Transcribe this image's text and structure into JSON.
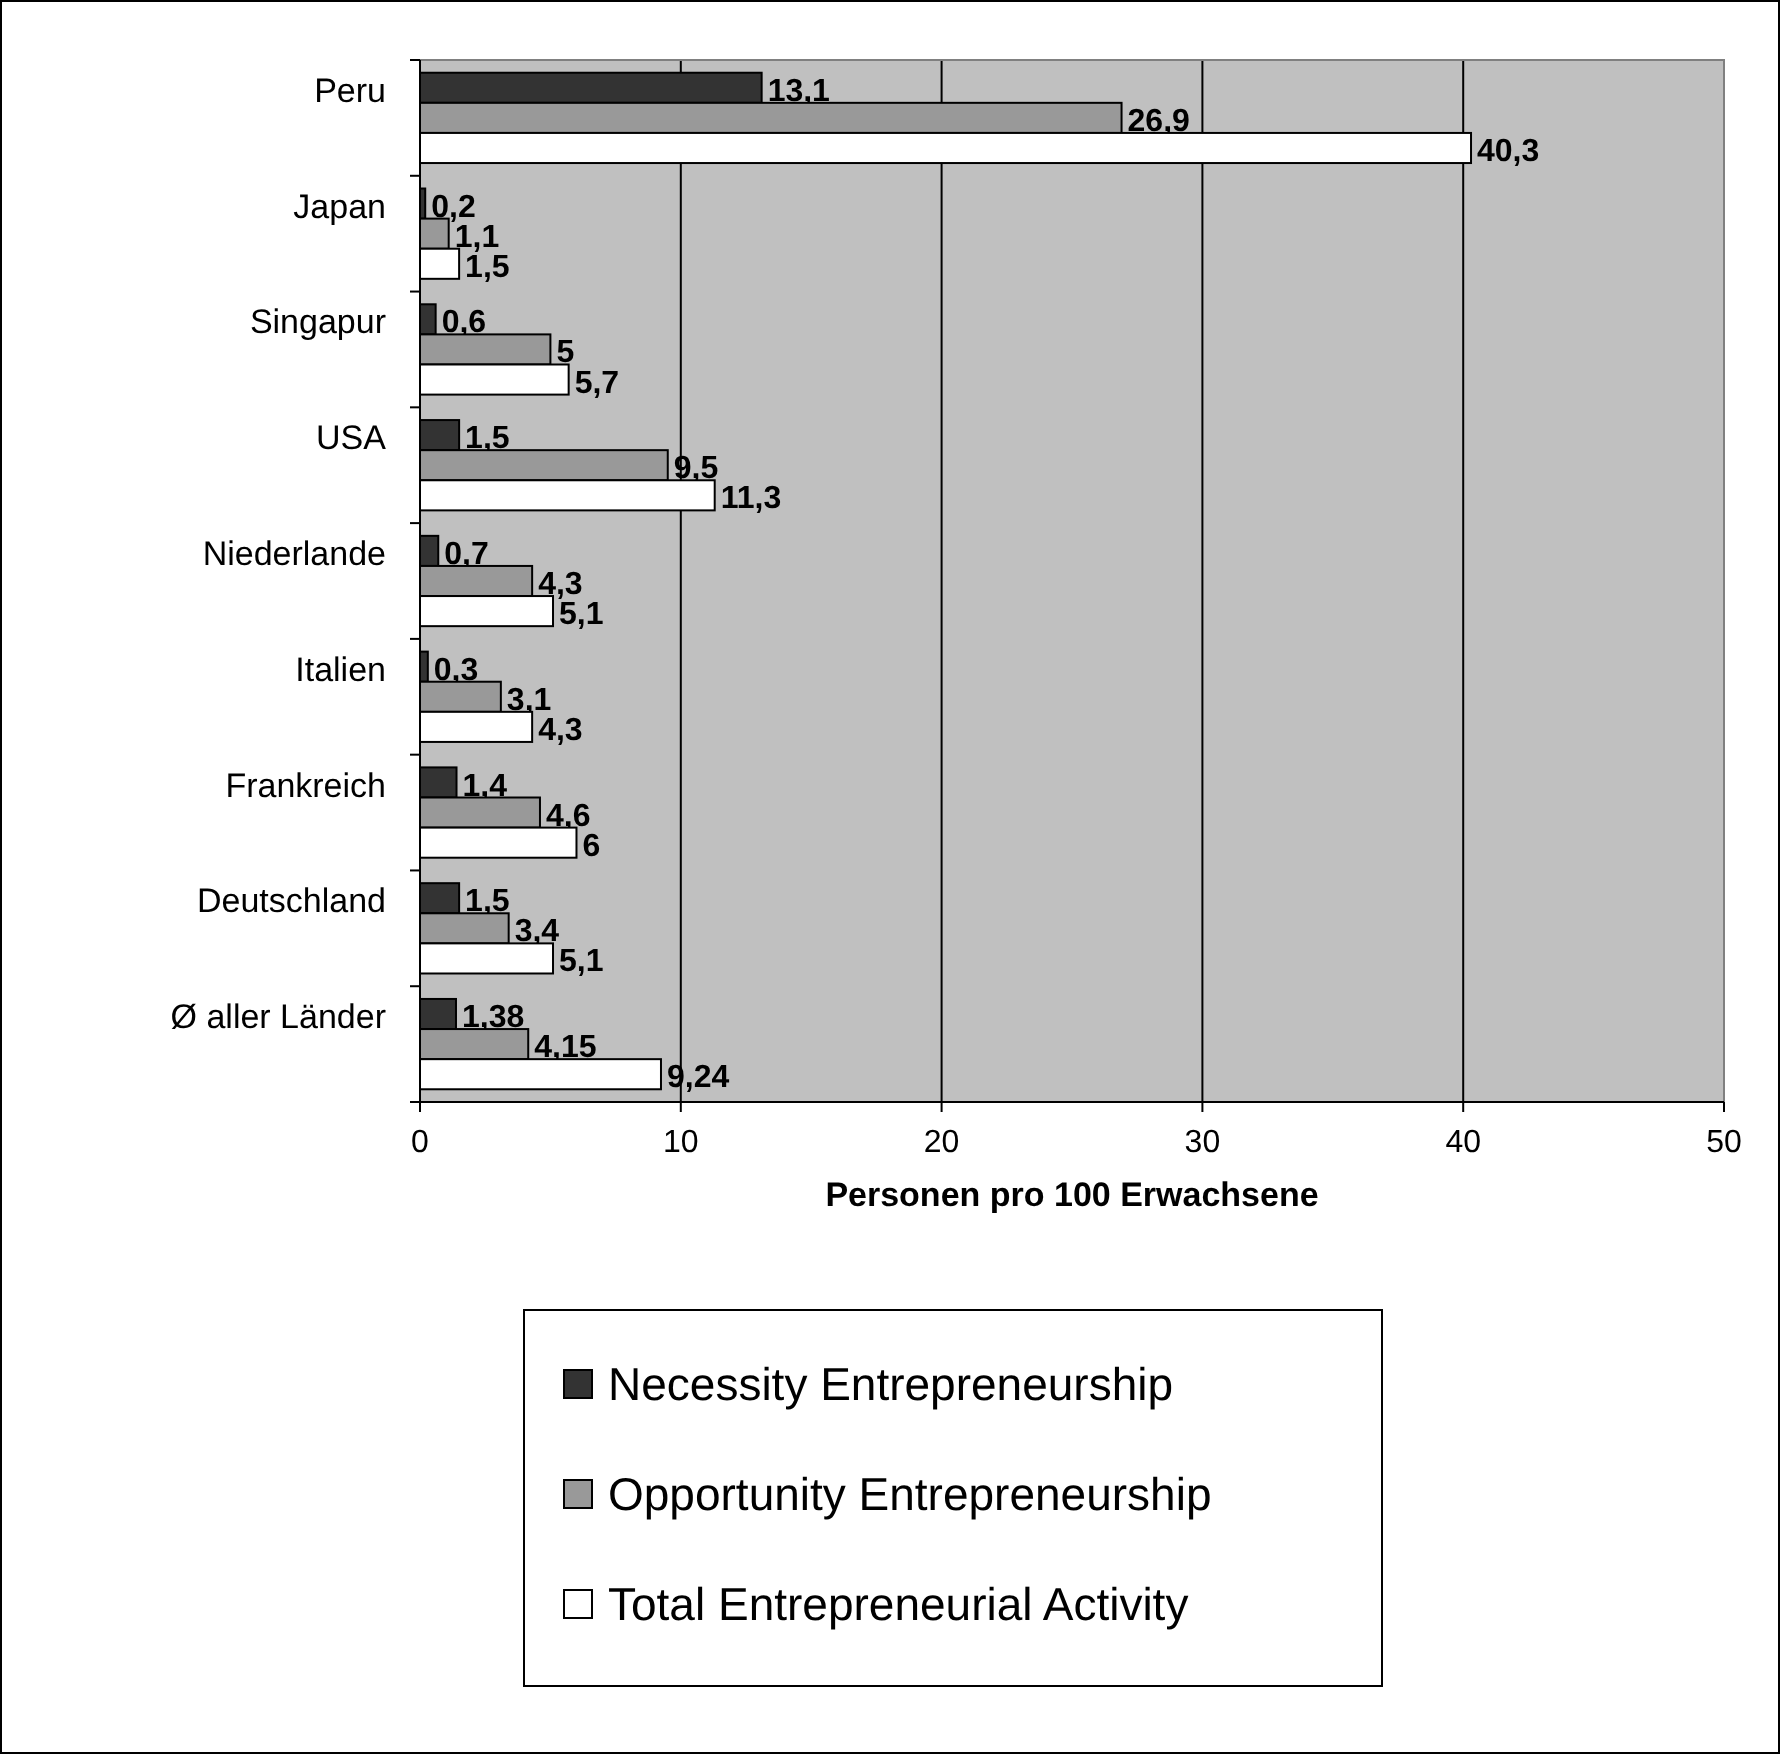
{
  "chart_data": {
    "type": "bar",
    "orientation": "horizontal",
    "xlabel": "Personen pro 100 Erwachsene",
    "categories": [
      "Peru",
      "Japan",
      "Singapur",
      "USA",
      "Niederlande",
      "Italien",
      "Frankreich",
      "Deutschland",
      "Ø aller Länder"
    ],
    "series": [
      {
        "name": "Necessity Entrepreneurship",
        "color": "#333333",
        "values": [
          13.1,
          0.2,
          0.6,
          1.5,
          0.7,
          0.3,
          1.4,
          1.5,
          1.38
        ],
        "value_labels": [
          "13,1",
          "0,2",
          "0,6",
          "1,5",
          "0,7",
          "0,3",
          "1,4",
          "1,5",
          "1,38"
        ]
      },
      {
        "name": "Opportunity Entrepreneurship",
        "color": "#999999",
        "values": [
          26.9,
          1.1,
          5,
          9.5,
          4.3,
          3.1,
          4.6,
          3.4,
          4.15
        ],
        "value_labels": [
          "26,9",
          "1,1",
          "5",
          "9,5",
          "4,3",
          "3,1",
          "4,6",
          "3,4",
          "4,15"
        ]
      },
      {
        "name": "Total Entrepreneurial Activity",
        "color": "#ffffff",
        "values": [
          40.3,
          1.5,
          5.7,
          11.3,
          5.1,
          4.3,
          6,
          5.1,
          9.24
        ],
        "value_labels": [
          "40,3",
          "1,5",
          "5,7",
          "11,3",
          "5,1",
          "4,3",
          "6",
          "5,1",
          "9,24"
        ]
      }
    ],
    "xlim": [
      0,
      50
    ],
    "xticks": [
      0,
      10,
      20,
      30,
      40,
      50
    ],
    "grid": "x",
    "legend": "bottom"
  }
}
